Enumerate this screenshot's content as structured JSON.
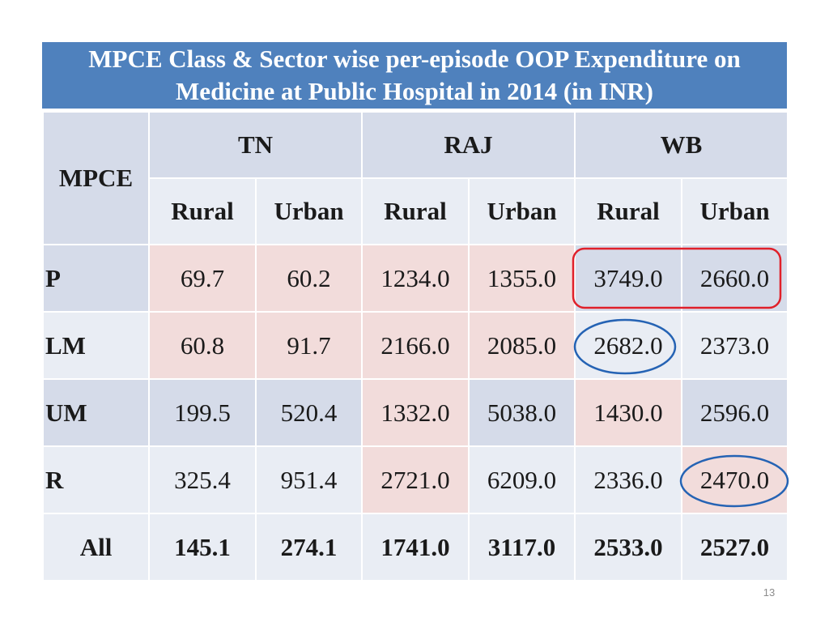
{
  "title": {
    "line1": "MPCE Class & Sector wise per-episode OOP Expenditure on",
    "line2": "Medicine at Public Hospital in 2014 (in INR)"
  },
  "table": {
    "mpce_header": "MPCE",
    "states": [
      "TN",
      "RAJ",
      "WB"
    ],
    "sectors": [
      "Rural",
      "Urban",
      "Rural",
      "Urban",
      "Rural",
      "Urban"
    ],
    "rows": [
      {
        "label": "P",
        "values": [
          "69.7",
          "60.2",
          "1234.0",
          "1355.0",
          "3749.0",
          "2660.0"
        ]
      },
      {
        "label": "LM",
        "values": [
          "60.8",
          "91.7",
          "2166.0",
          "2085.0",
          "2682.0",
          "2373.0"
        ]
      },
      {
        "label": "UM",
        "values": [
          "199.5",
          "520.4",
          "1332.0",
          "5038.0",
          "1430.0",
          "2596.0"
        ]
      },
      {
        "label": "R",
        "values": [
          "325.4",
          "951.4",
          "2721.0",
          "6209.0",
          "2336.0",
          "2470.0"
        ]
      }
    ],
    "total": {
      "label": "All",
      "values": [
        "145.1",
        "274.1",
        "1741.0",
        "3117.0",
        "2533.0",
        "2527.0"
      ]
    }
  },
  "annotations": {
    "red_highlight_color": "#e0202a",
    "blue_highlight_color": "#2563b4"
  },
  "footer": {
    "page_number": "13"
  }
}
